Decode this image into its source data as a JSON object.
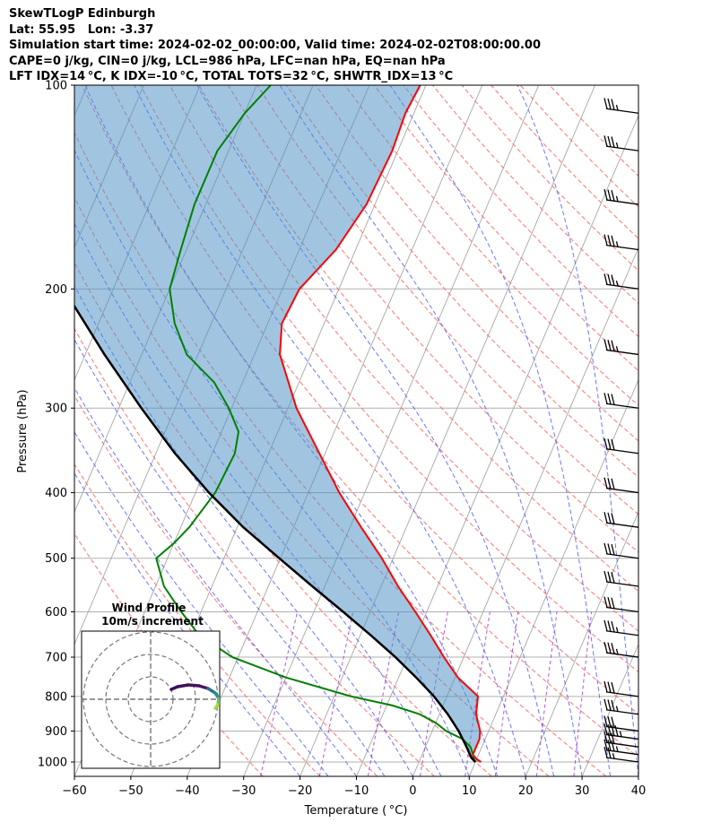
{
  "header": {
    "station": "SkewTLogP Edinburgh",
    "location": "Lat: 55.95   Lon: -3.37",
    "times": "Simulation start time: 2024-02-02_00:00:00, Valid time: 2024-02-02T08:00:00.00",
    "params": "CAPE=0 j/kg, CIN=0 j/kg, LCL=986 hPa, LFC=nan hPa, EQ=nan hPa",
    "indices": "LFT IDX=14 °C, K IDX=-10 °C, TOTAL TOTS=32 °C, SHWTR_IDX=13 °C"
  },
  "chart_data": {
    "type": "line",
    "subtype": "skew-T log-P sounding",
    "xlabel": "Temperature ( °C)",
    "ylabel": "Pressure (hPa)",
    "xlim": [
      -60,
      40
    ],
    "ylim": [
      1050,
      100
    ],
    "y_scale": "log",
    "skew": 37,
    "x_ticks": [
      -60,
      -50,
      -40,
      -30,
      -20,
      -10,
      0,
      10,
      20,
      30,
      40
    ],
    "y_ticks": [
      1000,
      900,
      800,
      700,
      600,
      500,
      400,
      300,
      200,
      100
    ],
    "grid": true,
    "colors": {
      "temperature": "#ff0000",
      "dewpoint": "#008000",
      "parcel": "#000000",
      "cape_fill": "#4b8fc4",
      "isotherm": "#a6a6a6",
      "dry_adiabat": "#ff6666",
      "moist_adiabat": "#5060ff",
      "mixing_ratio": "#9933cc"
    },
    "series": [
      {
        "key": "temperature",
        "pressure": [
          1000,
          990,
          975,
          950,
          925,
          900,
          850,
          800,
          750,
          700,
          650,
          600,
          550,
          500,
          450,
          400,
          350,
          300,
          250,
          225,
          200,
          175,
          150,
          125,
          110,
          100
        ],
        "temperature": [
          11.0,
          10.0,
          9.0,
          9.0,
          9.0,
          8.5,
          6.5,
          5.5,
          0.5,
          -3.5,
          -7.5,
          -12.0,
          -17.0,
          -22.0,
          -28.0,
          -34.5,
          -41.0,
          -48.5,
          -55.5,
          -57.5,
          -57.0,
          -53.5,
          -51.5,
          -51.0,
          -51.5,
          -51.0
        ]
      },
      {
        "key": "dewpoint",
        "pressure": [
          1000,
          990,
          975,
          950,
          925,
          900,
          875,
          850,
          825,
          800,
          750,
          700,
          650,
          600,
          550,
          500,
          475,
          450,
          400,
          350,
          325,
          300,
          275,
          250,
          225,
          200,
          175,
          150,
          125,
          110,
          100
        ],
        "temperature": [
          10.0,
          9.5,
          9.0,
          8.0,
          6.0,
          2.5,
          0.0,
          -3.5,
          -9.0,
          -17.0,
          -30.0,
          -41.0,
          -48.5,
          -53.5,
          -58.5,
          -62.0,
          -60.0,
          -58.5,
          -56.5,
          -56.0,
          -57.0,
          -60.5,
          -65.0,
          -72.0,
          -76.5,
          -80.0,
          -81.0,
          -82.0,
          -82.0,
          -80.0,
          -77.5
        ]
      },
      {
        "key": "parcel",
        "pressure": [
          1000,
          986,
          950,
          900,
          850,
          800,
          750,
          700,
          650,
          600,
          550,
          500,
          450,
          400,
          350,
          300,
          250,
          200,
          150,
          100
        ],
        "temperature": [
          10.0,
          9.0,
          7.3,
          4.7,
          1.5,
          -2.3,
          -6.9,
          -12.1,
          -18.1,
          -24.8,
          -32.2,
          -40.2,
          -48.9,
          -57.6,
          -66.6,
          -76.0,
          -86.6,
          -98.8,
          -113.2,
          -131.9
        ]
      }
    ],
    "wind_barbs": {
      "pressure": [
        1000,
        975,
        950,
        925,
        900,
        850,
        800,
        700,
        650,
        600,
        550,
        500,
        450,
        400,
        350,
        300,
        250,
        200,
        175,
        150,
        125,
        110
      ],
      "speed_kt": [
        15,
        25,
        30,
        35,
        30,
        25,
        30,
        25,
        25,
        30,
        30,
        30,
        30,
        30,
        30,
        30,
        25,
        25,
        25,
        25,
        25,
        25
      ]
    },
    "hodograph": {
      "title": "Wind Profile",
      "subtitle": "10m/s increment"
    }
  }
}
